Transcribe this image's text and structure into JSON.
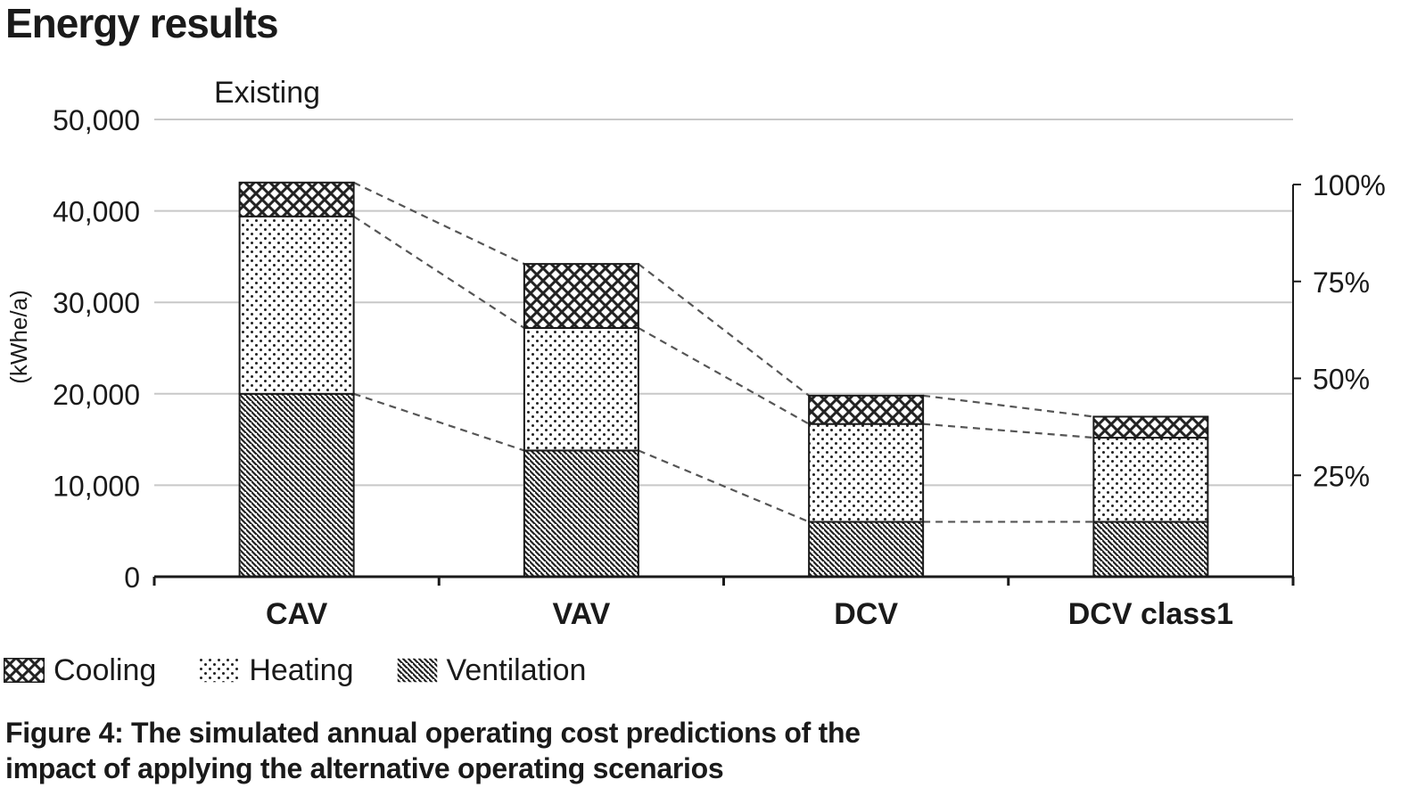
{
  "page": {
    "title": "Energy results"
  },
  "caption": "Figure 4: The simulated annual operating cost predictions of the impact of applying the alternative operating scenarios",
  "colors": {
    "grid": "#c8c8c8",
    "axis": "#1a1a1a",
    "bar_outline": "#1a1a1a",
    "connector": "#555555"
  },
  "chart_data": {
    "type": "bar",
    "stacked": true,
    "annotation": "Existing",
    "categories": [
      "CAV",
      "VAV",
      "DCV",
      "DCV class1"
    ],
    "series": [
      {
        "name": "Ventilation",
        "pattern": "diagonal-hatch",
        "values": [
          20000,
          13800,
          6000,
          6000
        ]
      },
      {
        "name": "Heating",
        "pattern": "dots",
        "values": [
          19400,
          13400,
          10700,
          9200
        ]
      },
      {
        "name": "Cooling",
        "pattern": "crosshatch",
        "values": [
          3700,
          7000,
          3100,
          2300
        ]
      }
    ],
    "ylabel": "(kWhe/a)",
    "ylim": [
      0,
      50000
    ],
    "yticks": [
      "0",
      "10,000",
      "20,000",
      "30,000",
      "40,000",
      "50,000"
    ],
    "y2ticks": [
      "25%",
      "50%",
      "75%",
      "100%"
    ],
    "grid": true,
    "connector_lines": "dashed",
    "legend_position": "bottom-left"
  }
}
